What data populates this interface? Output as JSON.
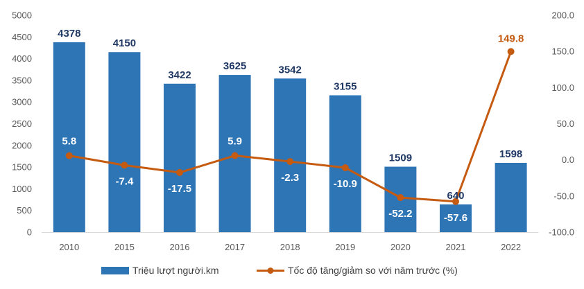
{
  "chart_data": {
    "type": "bar",
    "categories": [
      "2010",
      "2015",
      "2016",
      "2017",
      "2018",
      "2019",
      "2020",
      "2021",
      "2022"
    ],
    "series": [
      {
        "name": "Triệu lượt người.km",
        "type": "bar",
        "axis": "left",
        "color": "#2e75b6",
        "values": [
          4378,
          4150,
          3422,
          3625,
          3542,
          3155,
          1509,
          640,
          1598
        ],
        "labels": [
          "4378",
          "4150",
          "3422",
          "3625",
          "3542",
          "3155",
          "1509",
          "640",
          "1598"
        ]
      },
      {
        "name": "Tốc độ tăng/giảm so với năm trước (%)",
        "type": "line",
        "axis": "right",
        "color": "#c55a11",
        "values": [
          5.8,
          -7.4,
          -17.5,
          5.9,
          -2.3,
          -10.9,
          -52.2,
          -57.6,
          149.8
        ],
        "labels": [
          "5.8",
          "-7.4",
          "-17.5",
          "5.9",
          "-2.3",
          "-10.9",
          "-52.2",
          "-57.6",
          "149.8"
        ]
      }
    ],
    "left_axis": {
      "ylim": [
        0,
        5000
      ],
      "ticks": [
        "0",
        "500",
        "1000",
        "1500",
        "2000",
        "2500",
        "3000",
        "3500",
        "4000",
        "4500",
        "5000"
      ],
      "tick_values": [
        0,
        500,
        1000,
        1500,
        2000,
        2500,
        3000,
        3500,
        4000,
        4500,
        5000
      ]
    },
    "right_axis": {
      "ylim": [
        -100,
        200
      ],
      "ticks": [
        "-100.0",
        "-50.0",
        "0.0",
        "50.0",
        "100.0",
        "150.0",
        "200.0"
      ],
      "tick_values": [
        -100,
        -50,
        0,
        50,
        100,
        150,
        200
      ]
    },
    "title": "",
    "xlabel": "",
    "ylabel": "",
    "grid": false,
    "legend_position": "bottom",
    "colors": {
      "bar": "#2e75b6",
      "line": "#c55a11",
      "bar_label": "#1f3864",
      "line_label": "#ffffff",
      "axis_text": "#595959"
    }
  }
}
